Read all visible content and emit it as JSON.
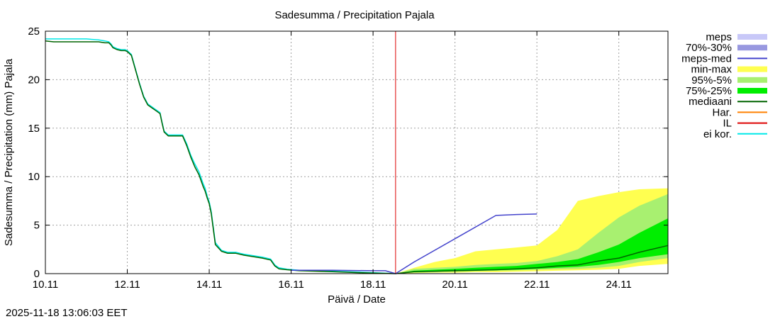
{
  "chart_data": {
    "type": "area",
    "title": "Sadesumma / Precipitation  Pajala",
    "xlabel": "Päivä / Date",
    "ylabel": "Sadesumma / Precipitation (mm)   Pajala",
    "timestamp": "2025-11-18 13:06:03 EET",
    "xlim": [
      0,
      15.2
    ],
    "ylim": [
      0,
      25
    ],
    "x_unit": "days since 10.11 00:00",
    "x_ticks": [
      {
        "x": 0,
        "label": "10.11"
      },
      {
        "x": 2,
        "label": "12.11"
      },
      {
        "x": 4,
        "label": "14.11"
      },
      {
        "x": 6,
        "label": "16.11"
      },
      {
        "x": 8,
        "label": "18.11"
      },
      {
        "x": 10,
        "label": "20.11"
      },
      {
        "x": 12,
        "label": "22.11"
      },
      {
        "x": 14,
        "label": "24.11"
      }
    ],
    "y_ticks": [
      {
        "y": 0,
        "label": "0"
      },
      {
        "y": 5,
        "label": "5"
      },
      {
        "y": 10,
        "label": "10"
      },
      {
        "y": 15,
        "label": "15"
      },
      {
        "y": 20,
        "label": "20"
      },
      {
        "y": 25,
        "label": "25"
      }
    ],
    "grid": true,
    "legend_position": "right",
    "colors": {
      "meps": "#c8c8f8",
      "meps_70_30": "#9898e0",
      "meps_med": "#4444cc",
      "min_max": "#ffff50",
      "p95_5": "#a8f070",
      "p75_25": "#00ee00",
      "mediaani": "#006400",
      "har": "#ff8000",
      "il": "#dd0000",
      "ei_kor": "#00e8e8",
      "grid": "#a0a0a0"
    },
    "legend": [
      {
        "key": "meps",
        "label": "meps",
        "style": "fill"
      },
      {
        "key": "meps_70_30",
        "label": "70%-30%",
        "style": "fill"
      },
      {
        "key": "meps_med",
        "label": "meps-med",
        "style": "line"
      },
      {
        "key": "min_max",
        "label": "min-max",
        "style": "fill"
      },
      {
        "key": "p95_5",
        "label": "95%-5%",
        "style": "fill"
      },
      {
        "key": "p75_25",
        "label": "75%-25%",
        "style": "fill"
      },
      {
        "key": "mediaani",
        "label": "mediaani",
        "style": "line"
      },
      {
        "key": "har",
        "label": "Har.",
        "style": "line"
      },
      {
        "key": "il",
        "label": "IL",
        "style": "line"
      },
      {
        "key": "ei_kor",
        "label": "ei kor.",
        "style": "line"
      }
    ],
    "il_marker_x": 8.55,
    "observed": {
      "x": [
        0,
        0.2,
        0.5,
        1.0,
        1.3,
        1.45,
        1.55,
        1.6,
        1.65,
        1.75,
        1.85,
        1.95,
        2.0,
        2.1,
        2.2,
        2.3,
        2.4,
        2.5,
        2.6,
        2.7,
        2.8,
        2.85,
        2.9,
        3.0,
        3.1,
        3.2,
        3.3,
        3.35,
        3.45,
        3.55,
        3.65,
        3.75,
        3.85,
        3.9,
        3.95,
        4.0,
        4.05,
        4.15,
        4.3,
        4.45,
        4.55,
        4.6,
        4.65,
        4.75,
        4.85,
        5.0,
        5.3,
        5.5,
        5.6,
        5.7,
        5.9,
        6.2,
        7.0,
        8.0,
        8.55
      ],
      "mediaani": [
        24.0,
        23.9,
        23.9,
        23.9,
        23.9,
        23.8,
        23.8,
        23.6,
        23.3,
        23.1,
        23.0,
        23.0,
        22.9,
        22.5,
        21.0,
        19.5,
        18.2,
        17.4,
        17.1,
        16.8,
        16.5,
        15.5,
        14.6,
        14.2,
        14.2,
        14.2,
        14.2,
        14.2,
        13.2,
        12.0,
        11.0,
        10.2,
        9.0,
        8.5,
        7.8,
        7.2,
        6.2,
        3.0,
        2.3,
        2.1,
        2.1,
        2.1,
        2.1,
        2.0,
        1.9,
        1.8,
        1.6,
        1.4,
        0.8,
        0.5,
        0.4,
        0.3,
        0.2,
        0.05,
        0.0
      ],
      "ei_kor": [
        24.2,
        24.2,
        24.2,
        24.2,
        24.1,
        24.0,
        23.9,
        23.7,
        23.4,
        23.2,
        23.1,
        23.1,
        23.0,
        22.6,
        21.1,
        19.6,
        18.3,
        17.5,
        17.2,
        16.9,
        16.6,
        15.6,
        14.7,
        14.3,
        14.3,
        14.3,
        14.3,
        14.3,
        13.4,
        12.2,
        11.3,
        10.5,
        9.3,
        8.8,
        8.0,
        7.4,
        6.4,
        3.2,
        2.4,
        2.2,
        2.2,
        2.2,
        2.2,
        2.1,
        2.0,
        1.9,
        1.7,
        1.5,
        0.9,
        0.6,
        0.45,
        0.35,
        0.25,
        0.1,
        0.0
      ]
    },
    "meps_med": {
      "x": [
        6.0,
        7.0,
        8.0,
        8.3,
        8.55,
        9.0,
        10.0,
        11.0,
        11.5,
        12.0
      ],
      "y": [
        0.35,
        0.35,
        0.3,
        0.3,
        0.0,
        1.2,
        3.6,
        6.0,
        6.1,
        6.15
      ]
    },
    "ensemble": {
      "x": [
        8.55,
        9.0,
        9.5,
        10.0,
        10.5,
        11.0,
        11.5,
        12.0,
        12.5,
        13.0,
        13.5,
        14.0,
        14.5,
        15.2
      ],
      "min": [
        0,
        0.05,
        0.1,
        0.1,
        0.15,
        0.15,
        0.2,
        0.25,
        0.3,
        0.35,
        0.4,
        0.5,
        0.8,
        1.0
      ],
      "p5": [
        0,
        0.1,
        0.15,
        0.2,
        0.25,
        0.3,
        0.35,
        0.4,
        0.45,
        0.5,
        0.6,
        0.8,
        1.2,
        1.6
      ],
      "p25": [
        0,
        0.15,
        0.2,
        0.25,
        0.3,
        0.35,
        0.4,
        0.5,
        0.6,
        0.7,
        0.9,
        1.2,
        1.6,
        2.0
      ],
      "median": [
        0,
        0.2,
        0.25,
        0.3,
        0.35,
        0.4,
        0.5,
        0.6,
        0.8,
        0.9,
        1.3,
        1.6,
        2.2,
        2.9
      ],
      "p75": [
        0,
        0.3,
        0.4,
        0.5,
        0.6,
        0.7,
        0.8,
        1.0,
        1.2,
        1.5,
        2.2,
        3.0,
        4.2,
        5.7
      ],
      "p95": [
        0,
        0.5,
        0.6,
        0.7,
        0.9,
        1.0,
        1.1,
        1.3,
        1.8,
        2.5,
        4.2,
        5.8,
        7.0,
        8.2
      ],
      "max": [
        0,
        0.6,
        1.2,
        1.6,
        2.3,
        2.5,
        2.7,
        2.9,
        4.5,
        7.5,
        8.0,
        8.4,
        8.7,
        8.8
      ]
    }
  }
}
